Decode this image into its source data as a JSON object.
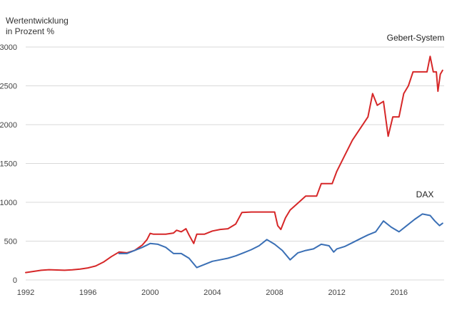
{
  "chart_data": {
    "type": "line",
    "ylabel_line1": "Wertentwicklung",
    "ylabel_line2": "in Prozent %",
    "xlim": [
      1992,
      2018.9
    ],
    "ylim": [
      0,
      3000
    ],
    "yticks": [
      0,
      500,
      1000,
      1500,
      2000,
      2500,
      3000
    ],
    "xticks": [
      1992,
      1996,
      2000,
      2004,
      2008,
      2012,
      2016
    ],
    "grid": "horizontal",
    "series": [
      {
        "name": "Gebert-System",
        "color": "#d62728",
        "points": [
          [
            1992.0,
            95
          ],
          [
            1992.5,
            110
          ],
          [
            1993.0,
            125
          ],
          [
            1993.5,
            132
          ],
          [
            1994.0,
            128
          ],
          [
            1994.5,
            125
          ],
          [
            1995.0,
            130
          ],
          [
            1995.5,
            140
          ],
          [
            1996.0,
            155
          ],
          [
            1996.5,
            180
          ],
          [
            1997.0,
            230
          ],
          [
            1997.5,
            300
          ],
          [
            1998.0,
            360
          ],
          [
            1998.5,
            350
          ],
          [
            1999.0,
            380
          ],
          [
            1999.5,
            450
          ],
          [
            1999.8,
            520
          ],
          [
            2000.0,
            600
          ],
          [
            2000.2,
            590
          ],
          [
            2001.0,
            590
          ],
          [
            2001.5,
            605
          ],
          [
            2001.7,
            640
          ],
          [
            2002.0,
            620
          ],
          [
            2002.3,
            660
          ],
          [
            2002.5,
            580
          ],
          [
            2002.8,
            470
          ],
          [
            2003.0,
            590
          ],
          [
            2003.5,
            590
          ],
          [
            2004.0,
            630
          ],
          [
            2004.5,
            650
          ],
          [
            2005.0,
            660
          ],
          [
            2005.5,
            720
          ],
          [
            2005.9,
            870
          ],
          [
            2006.5,
            875
          ],
          [
            2007.5,
            875
          ],
          [
            2008.0,
            875
          ],
          [
            2008.2,
            700
          ],
          [
            2008.4,
            650
          ],
          [
            2008.7,
            800
          ],
          [
            2009.0,
            900
          ],
          [
            2009.5,
            990
          ],
          [
            2010.0,
            1080
          ],
          [
            2010.7,
            1080
          ],
          [
            2011.0,
            1240
          ],
          [
            2011.7,
            1240
          ],
          [
            2012.0,
            1400
          ],
          [
            2012.5,
            1600
          ],
          [
            2013.0,
            1800
          ],
          [
            2013.5,
            1950
          ],
          [
            2014.0,
            2100
          ],
          [
            2014.3,
            2400
          ],
          [
            2014.6,
            2250
          ],
          [
            2015.0,
            2300
          ],
          [
            2015.3,
            1850
          ],
          [
            2015.6,
            2100
          ],
          [
            2016.0,
            2100
          ],
          [
            2016.3,
            2400
          ],
          [
            2016.6,
            2500
          ],
          [
            2016.9,
            2680
          ],
          [
            2017.5,
            2680
          ],
          [
            2017.8,
            2680
          ],
          [
            2018.0,
            2880
          ],
          [
            2018.2,
            2680
          ],
          [
            2018.4,
            2680
          ],
          [
            2018.5,
            2430
          ],
          [
            2018.65,
            2650
          ],
          [
            2018.8,
            2700
          ]
        ]
      },
      {
        "name": "DAX",
        "color": "#3a6fb5",
        "points": [
          [
            1998.0,
            340
          ],
          [
            1998.5,
            340
          ],
          [
            1999.0,
            380
          ],
          [
            1999.5,
            420
          ],
          [
            2000.0,
            470
          ],
          [
            2000.5,
            460
          ],
          [
            2001.0,
            420
          ],
          [
            2001.5,
            340
          ],
          [
            2002.0,
            340
          ],
          [
            2002.5,
            280
          ],
          [
            2003.0,
            160
          ],
          [
            2003.5,
            200
          ],
          [
            2004.0,
            240
          ],
          [
            2004.5,
            260
          ],
          [
            2005.0,
            280
          ],
          [
            2005.5,
            310
          ],
          [
            2006.0,
            350
          ],
          [
            2006.5,
            390
          ],
          [
            2007.0,
            440
          ],
          [
            2007.5,
            520
          ],
          [
            2008.0,
            460
          ],
          [
            2008.5,
            380
          ],
          [
            2009.0,
            260
          ],
          [
            2009.5,
            350
          ],
          [
            2010.0,
            380
          ],
          [
            2010.5,
            400
          ],
          [
            2011.0,
            460
          ],
          [
            2011.5,
            440
          ],
          [
            2011.8,
            360
          ],
          [
            2012.0,
            400
          ],
          [
            2012.5,
            430
          ],
          [
            2013.0,
            480
          ],
          [
            2013.5,
            530
          ],
          [
            2014.0,
            580
          ],
          [
            2014.5,
            620
          ],
          [
            2015.0,
            760
          ],
          [
            2015.5,
            680
          ],
          [
            2016.0,
            620
          ],
          [
            2016.5,
            700
          ],
          [
            2017.0,
            780
          ],
          [
            2017.5,
            850
          ],
          [
            2018.0,
            830
          ],
          [
            2018.3,
            760
          ],
          [
            2018.6,
            700
          ],
          [
            2018.8,
            730
          ]
        ]
      }
    ]
  }
}
